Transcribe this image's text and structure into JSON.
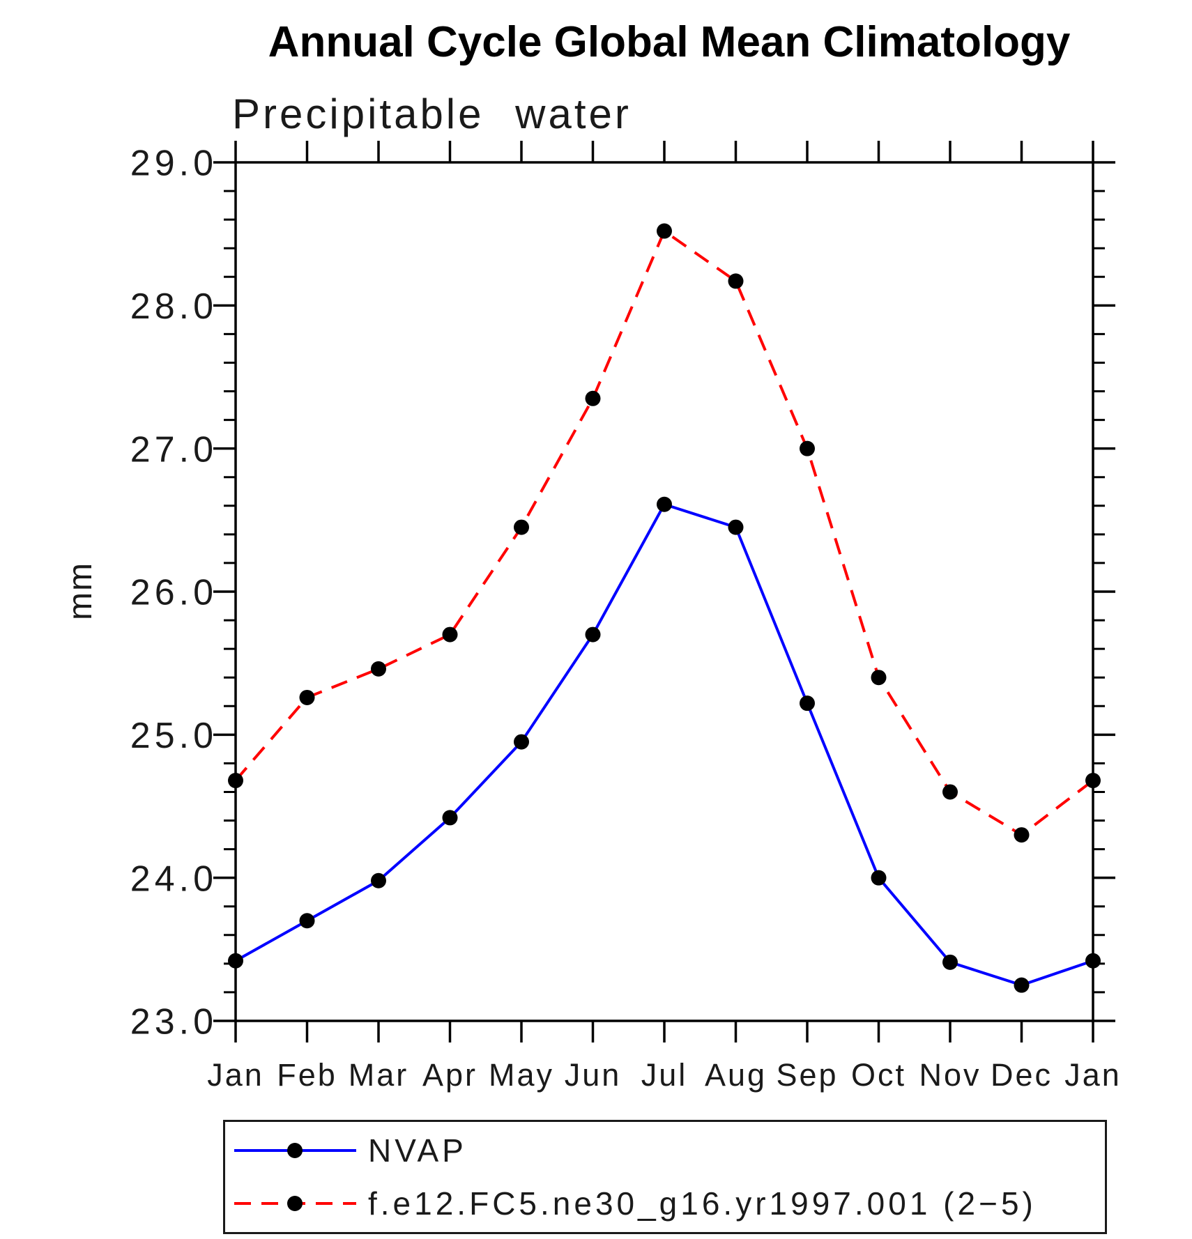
{
  "title": "Annual Cycle Global Mean Climatology",
  "subtitle": "Precipitable water",
  "ylabel": "mm",
  "colors": {
    "nvap_line": "#0000ff",
    "model_line": "#ff0000",
    "marker": "#000000",
    "axis": "#000000"
  },
  "chart_data": {
    "type": "line",
    "categories": [
      "Jan",
      "Feb",
      "Mar",
      "Apr",
      "May",
      "Jun",
      "Jul",
      "Aug",
      "Sep",
      "Oct",
      "Nov",
      "Dec",
      "Jan"
    ],
    "series": [
      {
        "name": "NVAP",
        "color": "#0000ff",
        "line_style": "solid",
        "marker": "filled-circle",
        "marker_color": "#000000",
        "values": [
          23.42,
          23.7,
          23.98,
          24.42,
          24.95,
          25.7,
          26.61,
          26.45,
          25.22,
          24.0,
          23.41,
          23.25,
          23.42
        ]
      },
      {
        "name": "f.e12.FC5.ne30_g16.yr1997.001 (2−5)",
        "color": "#ff0000",
        "line_style": "dashed",
        "marker": "filled-circle",
        "marker_color": "#000000",
        "values": [
          24.68,
          25.26,
          25.46,
          25.7,
          26.45,
          27.35,
          28.52,
          28.17,
          27.0,
          25.4,
          24.6,
          24.3,
          24.68
        ]
      }
    ],
    "xlabel": "",
    "ylabel": "mm",
    "ylim": [
      23.0,
      29.0
    ],
    "y_major_step": 1.0,
    "y_minor_step": 0.2,
    "y_tick_labels": [
      "29.0",
      "28.0",
      "27.0",
      "26.0",
      "25.0",
      "24.0",
      "23.0"
    ],
    "grid": false,
    "legend_position": "bottom"
  },
  "legend": {
    "entries": [
      {
        "label": "NVAP"
      },
      {
        "label": "f.e12.FC5.ne30_g16.yr1997.001 (2−5)"
      }
    ]
  }
}
